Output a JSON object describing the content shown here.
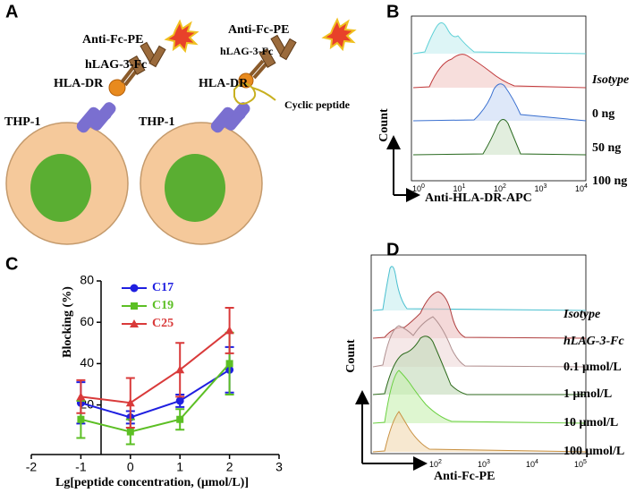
{
  "panel_a": {
    "letter": "A",
    "left": {
      "antibody": "Anti-Fc-PE",
      "fusion": "hLAG-3-Fc",
      "receptor": "HLA-DR",
      "cell": "THP-1"
    },
    "right": {
      "antibody": "Anti-Fc-PE",
      "fusion": "hLAG-3-Fc",
      "receptor": "HLA-DR",
      "cell": "THP-1",
      "peptide": "Cyclic peptide"
    }
  },
  "panel_b": {
    "letter": "B",
    "y_label": "Count",
    "x_label": "Anti-HLA-DR-APC",
    "samples": [
      "Isotype",
      "0 ng",
      "50 ng",
      "100 ng"
    ],
    "xtick_labels": [
      {
        "base": "10",
        "exp": "0"
      },
      {
        "base": "10",
        "exp": "1"
      },
      {
        "base": "10",
        "exp": "2"
      },
      {
        "base": "10",
        "exp": "3"
      },
      {
        "base": "10",
        "exp": "4"
      }
    ]
  },
  "chart_data": {
    "type": "line",
    "panel_label": "C",
    "x_label": "Lg[peptide concentration, (μmol/L)]",
    "y_label": "Blocking (%)",
    "x": [
      -1,
      0,
      1,
      2
    ],
    "series": [
      {
        "name": "C17",
        "color": "#1f1fe0",
        "marker": "circle",
        "values": [
          21,
          14,
          22,
          37
        ],
        "errors": [
          10,
          3,
          3,
          11
        ]
      },
      {
        "name": "C19",
        "color": "#5cbf24",
        "marker": "square",
        "values": [
          13,
          7,
          13,
          40
        ],
        "errors": [
          9,
          6,
          5,
          15
        ]
      },
      {
        "name": "C25",
        "color": "#d93a3a",
        "marker": "triangle",
        "values": [
          24,
          21,
          37,
          56
        ],
        "errors": [
          8,
          12,
          13,
          11
        ]
      }
    ],
    "xlim": [
      -2,
      3
    ],
    "xticks": [
      -2,
      -1,
      0,
      1,
      2,
      3
    ],
    "ylim": [
      -4,
      80
    ],
    "yticks": [
      20,
      40,
      60,
      80
    ]
  },
  "panel_d": {
    "letter": "D",
    "y_label": "Count",
    "x_label": "Anti-Fc-PE",
    "samples": [
      "Isotype",
      "hLAG-3-Fc",
      "0.1 μmol/L",
      "1 μmol/L",
      "10 μmol/L",
      "100 μmol/L"
    ],
    "xtick_labels": [
      {
        "base": "10",
        "exp": "2"
      },
      {
        "base": "10",
        "exp": "3"
      },
      {
        "base": "10",
        "exp": "4"
      },
      {
        "base": "10",
        "exp": "5"
      }
    ]
  }
}
